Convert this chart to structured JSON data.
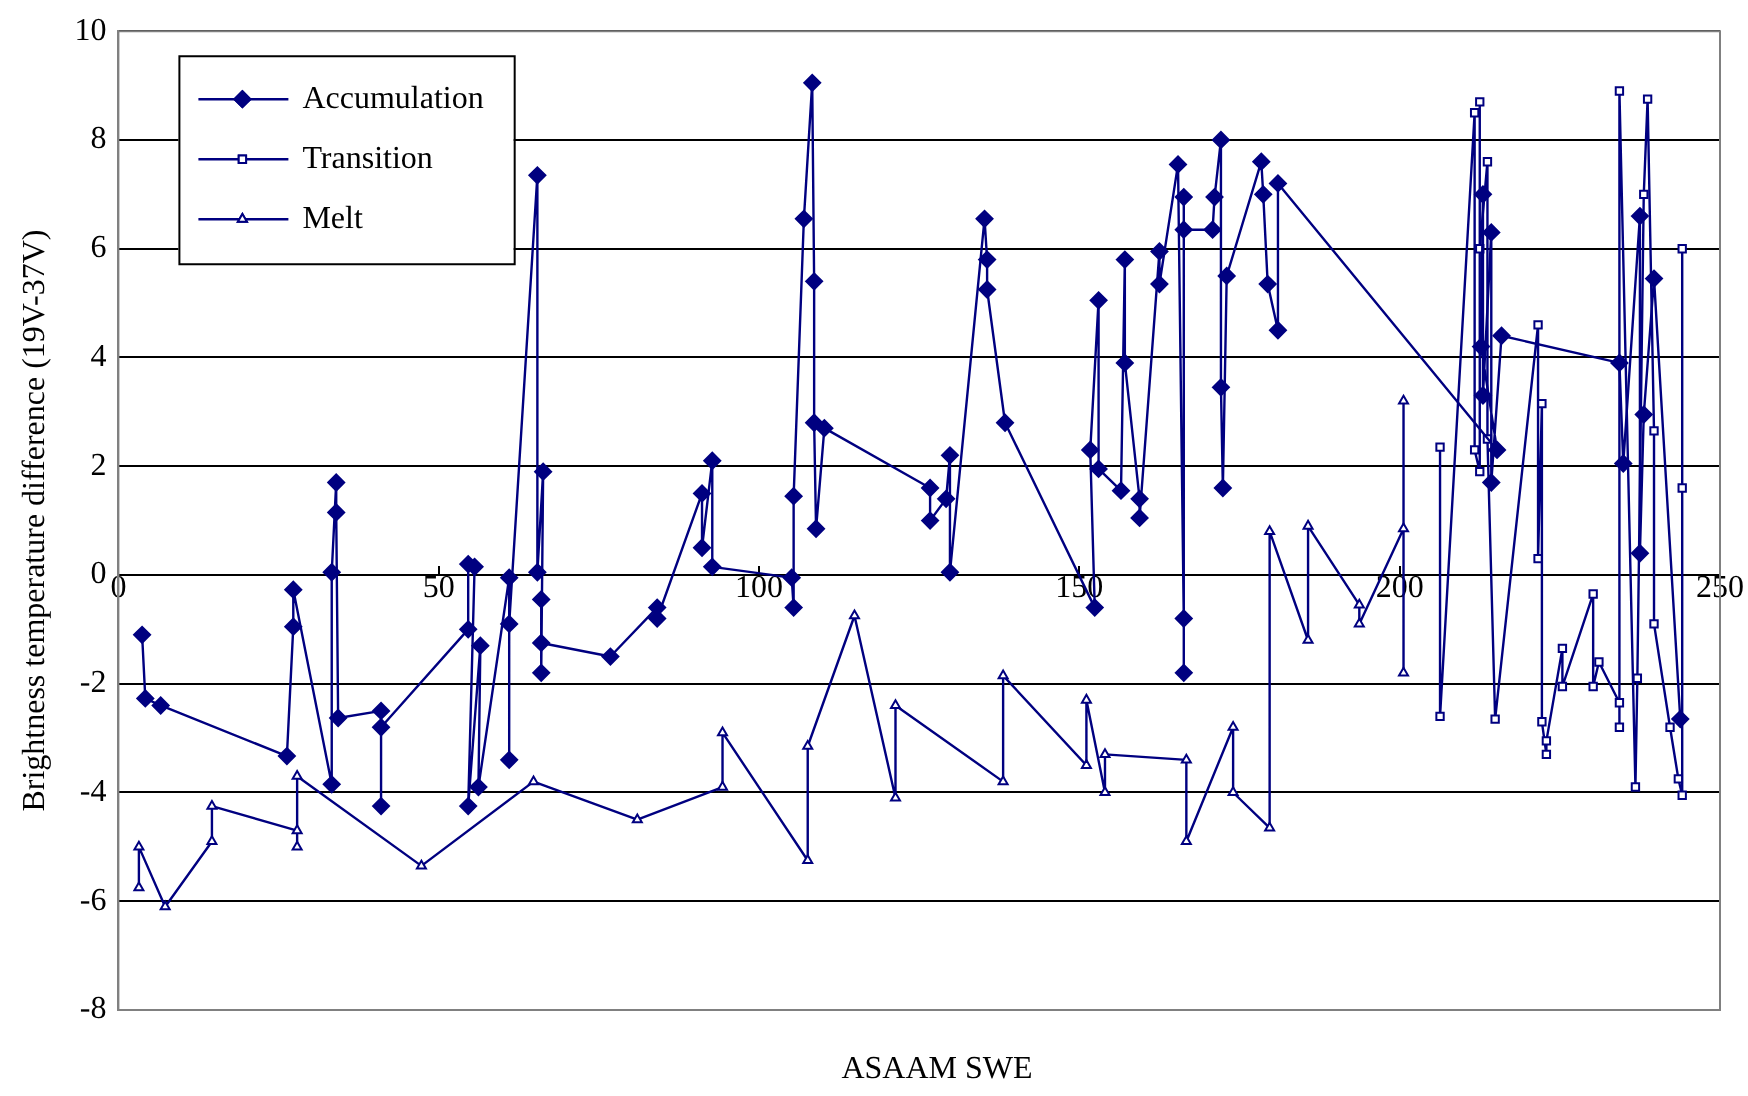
{
  "chart_data": {
    "type": "line",
    "xlabel": "ASAAM SWE",
    "ylabel": "Brightness temperature difference (19V-37V)",
    "xlim": [
      0,
      250
    ],
    "xticks": [
      0,
      50,
      100,
      150,
      200,
      250
    ],
    "ylim": [
      -8,
      10
    ],
    "yticks": [
      -8,
      -6,
      -4,
      -2,
      0,
      2,
      4,
      6,
      8,
      10
    ],
    "grid": "y",
    "legend": "top left",
    "line_style": "solid",
    "series": [
      {
        "name": "Accumulation",
        "color": "#000080",
        "marker": "diamond",
        "x": [
          3.7,
          4.2,
          6.6,
          26.3,
          27.3,
          27.3,
          33.3,
          33.3,
          34.0,
          34.0,
          34.3,
          41.0,
          41.0,
          41.0,
          54.6,
          54.6,
          55.6,
          54.6,
          56.5,
          56.2,
          61.0,
          61.0,
          61.0,
          65.4,
          65.4,
          66.3,
          66.0,
          66.0,
          66.0,
          76.8,
          84.1,
          84.1,
          91.1,
          91.1,
          92.7,
          92.7,
          105.1,
          105.4,
          105.4,
          107.0,
          108.3,
          108.6,
          108.6,
          108.9,
          110.2,
          126.7,
          126.7,
          129.2,
          129.8,
          129.8,
          135.2,
          135.6,
          135.6,
          138.4,
          152.4,
          151.7,
          153.0,
          153.0,
          156.5,
          157.1,
          157.1,
          159.4,
          159.4,
          162.5,
          162.5,
          165.4,
          166.3,
          166.3,
          166.3,
          166.3,
          170.8,
          171.1,
          172.1,
          172.1,
          172.4,
          173.0,
          178.4,
          178.7,
          179.4,
          181.0,
          181.0,
          215.2,
          212.7,
          213.0,
          213.0,
          214.3,
          214.3,
          215.9,
          234.3,
          234.9,
          237.5,
          237.5,
          238.1,
          239.7,
          243.8
        ],
        "values": [
          -1.1,
          -2.27,
          -2.4,
          -3.33,
          -0.95,
          -0.27,
          -3.85,
          0.05,
          1.7,
          1.15,
          -2.63,
          -2.5,
          -4.25,
          -2.8,
          -1.0,
          0.2,
          0.15,
          -4.25,
          -1.3,
          -3.9,
          -0.05,
          -3.4,
          -0.9,
          7.35,
          0.05,
          1.9,
          -1.8,
          -0.45,
          -1.25,
          -1.5,
          -0.6,
          -0.8,
          1.5,
          0.5,
          2.1,
          0.15,
          -0.05,
          -0.6,
          1.45,
          6.55,
          9.05,
          5.4,
          2.8,
          0.85,
          2.7,
          1.6,
          1.0,
          1.4,
          2.2,
          0.05,
          6.55,
          5.8,
          5.25,
          2.8,
          -0.6,
          2.3,
          5.05,
          1.95,
          1.55,
          5.8,
          3.9,
          1.4,
          1.05,
          5.95,
          5.35,
          7.55,
          -0.8,
          -1.8,
          6.95,
          6.35,
          6.35,
          6.95,
          8.0,
          3.45,
          1.6,
          5.5,
          7.6,
          7.0,
          5.35,
          4.5,
          7.2,
          2.3,
          4.2,
          7.0,
          3.3,
          6.3,
          1.7,
          4.4,
          3.9,
          2.05,
          6.6,
          0.4,
          2.95,
          5.45,
          -2.65
        ]
      },
      {
        "name": "Transition",
        "color": "#000080",
        "marker": "square",
        "x": [
          206.3,
          206.3,
          211.7,
          211.7,
          212.5,
          212.5,
          212.5,
          213.7,
          213.7,
          214.9,
          221.6,
          221.6,
          222.2,
          222.2,
          222.9,
          222.9,
          225.4,
          225.4,
          230.2,
          230.2,
          231.1,
          234.3,
          234.3,
          234.3,
          236.8,
          237.1,
          238.1,
          238.7,
          239.7,
          239.7,
          242.2,
          243.5,
          244.1,
          244.1,
          244.1
        ],
        "values": [
          2.35,
          -2.6,
          8.5,
          2.3,
          1.9,
          8.7,
          6.0,
          7.6,
          2.5,
          -2.65,
          4.6,
          0.3,
          3.15,
          -2.7,
          -3.3,
          -3.05,
          -1.35,
          -2.05,
          -0.35,
          -2.05,
          -1.6,
          -2.35,
          -2.8,
          8.9,
          -3.9,
          -1.9,
          7.0,
          8.75,
          2.65,
          -0.9,
          -2.8,
          -3.75,
          -4.05,
          6.0,
          1.6
        ]
      },
      {
        "name": "Melt",
        "color": "#000080",
        "marker": "triangle",
        "x": [
          3.2,
          3.2,
          7.3,
          14.6,
          14.6,
          27.9,
          27.9,
          27.9,
          47.3,
          64.8,
          81.0,
          94.3,
          94.3,
          107.6,
          107.6,
          114.9,
          121.3,
          121.3,
          138.1,
          138.1,
          151.1,
          151.1,
          154.0,
          154.0,
          166.7,
          166.7,
          174.0,
          174.0,
          179.7,
          179.7,
          185.7,
          185.7,
          193.7,
          193.7,
          200.6,
          200.6,
          200.6
        ],
        "values": [
          -5.75,
          -5.0,
          -6.1,
          -4.9,
          -4.25,
          -4.7,
          -5.0,
          -3.7,
          -5.35,
          -3.8,
          -4.5,
          -3.9,
          -2.9,
          -5.25,
          -3.15,
          -0.75,
          -4.1,
          -2.4,
          -3.8,
          -1.85,
          -3.5,
          -2.3,
          -4.0,
          -3.3,
          -3.4,
          -4.9,
          -2.8,
          -4.0,
          -4.65,
          0.8,
          -1.2,
          0.9,
          -0.55,
          -0.9,
          0.85,
          3.2,
          -1.8
        ]
      }
    ]
  }
}
